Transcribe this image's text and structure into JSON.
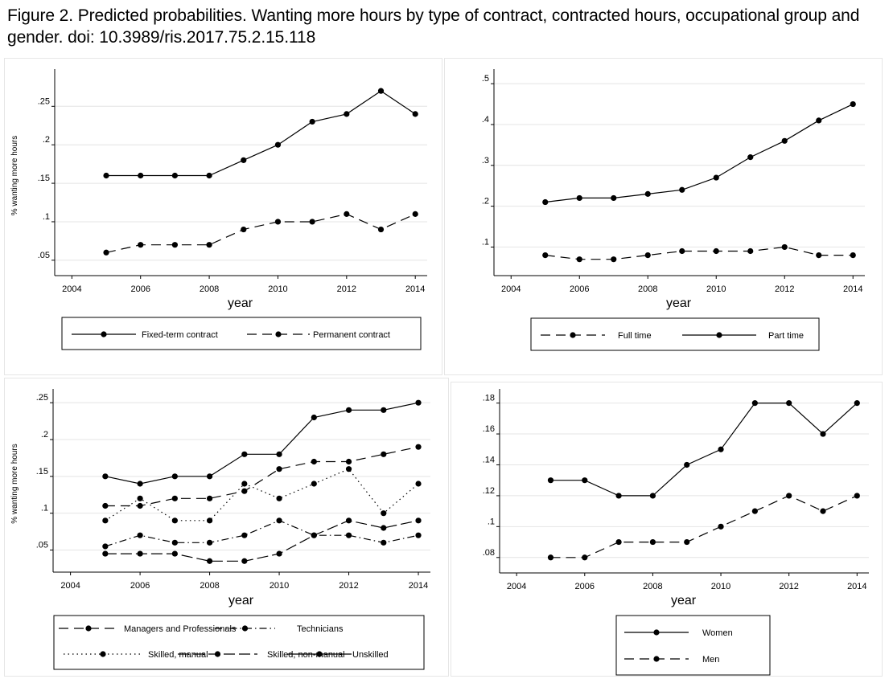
{
  "caption": "Figure 2. Predicted probabilities. Wanting more hours by type of contract, contracted hours, occupational group and gender. doi: 10.3989/ris.2017.75.2.15.118",
  "chart_data": [
    {
      "type": "line",
      "xlabel": "year",
      "ylabel": "% wanting more hours",
      "xlim": [
        2003.5,
        2014.3
      ],
      "ylim": [
        0.03,
        0.29
      ],
      "xticks": [
        2004,
        2006,
        2008,
        2010,
        2012,
        2014
      ],
      "yticks": [
        0.05,
        0.1,
        0.15,
        0.2,
        0.25
      ],
      "ytick_labels": [
        ".05",
        ".1",
        ".15",
        ".2",
        ".25"
      ],
      "grid": true,
      "legend_placement": "bottom",
      "series": [
        {
          "name": "Fixed-term contract",
          "style": "solid",
          "x": [
            2005,
            2006,
            2007,
            2008,
            2009,
            2010,
            2011,
            2012,
            2013,
            2014
          ],
          "y": [
            0.16,
            0.16,
            0.16,
            0.16,
            0.18,
            0.2,
            0.23,
            0.24,
            0.27,
            0.24
          ]
        },
        {
          "name": "Permanent contract",
          "style": "dash",
          "x": [
            2005,
            2006,
            2007,
            2008,
            2009,
            2010,
            2011,
            2012,
            2013,
            2014
          ],
          "y": [
            0.06,
            0.07,
            0.07,
            0.07,
            0.09,
            0.1,
            0.1,
            0.11,
            0.09,
            0.11
          ]
        }
      ]
    },
    {
      "type": "line",
      "xlabel": "year",
      "ylabel": "",
      "xlim": [
        2003.5,
        2014.3
      ],
      "ylim": [
        0.03,
        0.52
      ],
      "xticks": [
        2004,
        2006,
        2008,
        2010,
        2012,
        2014
      ],
      "yticks": [
        0.1,
        0.2,
        0.3,
        0.4,
        0.5
      ],
      "ytick_labels": [
        ".1",
        ".2",
        ".3",
        ".4",
        ".5"
      ],
      "grid": true,
      "legend_placement": "bottom",
      "series": [
        {
          "name": "Full time",
          "style": "dash",
          "x": [
            2005,
            2006,
            2007,
            2008,
            2009,
            2010,
            2011,
            2012,
            2013,
            2014
          ],
          "y": [
            0.08,
            0.07,
            0.07,
            0.08,
            0.09,
            0.09,
            0.09,
            0.1,
            0.08,
            0.08
          ]
        },
        {
          "name": "Part time",
          "style": "solid",
          "x": [
            2005,
            2006,
            2007,
            2008,
            2009,
            2010,
            2011,
            2012,
            2013,
            2014
          ],
          "y": [
            0.21,
            0.22,
            0.22,
            0.23,
            0.24,
            0.27,
            0.32,
            0.36,
            0.41,
            0.45
          ]
        }
      ]
    },
    {
      "type": "line",
      "xlabel": "year",
      "ylabel": "% wanting more hours",
      "xlim": [
        2003.5,
        2014.3
      ],
      "ylim": [
        0.02,
        0.26
      ],
      "xticks": [
        2004,
        2006,
        2008,
        2010,
        2012,
        2014
      ],
      "yticks": [
        0.05,
        0.1,
        0.15,
        0.2,
        0.25
      ],
      "ytick_labels": [
        ".05",
        ".1",
        ".15",
        ".2",
        ".25"
      ],
      "grid": true,
      "legend_placement": "bottom",
      "series": [
        {
          "name": "Managers and Professionals",
          "style": "dash",
          "x": [
            2005,
            2006,
            2007,
            2008,
            2009,
            2010,
            2011,
            2012,
            2013,
            2014
          ],
          "y": [
            0.11,
            0.11,
            0.12,
            0.12,
            0.13,
            0.16,
            0.17,
            0.17,
            0.18,
            0.19
          ]
        },
        {
          "name": "Technicians",
          "style": "dashdot",
          "x": [
            2005,
            2006,
            2007,
            2008,
            2009,
            2010,
            2011,
            2012,
            2013,
            2014
          ],
          "y": [
            0.055,
            0.07,
            0.06,
            0.06,
            0.07,
            0.09,
            0.07,
            0.07,
            0.06,
            0.07
          ]
        },
        {
          "name": "Skilled, manual",
          "style": "dot",
          "x": [
            2005,
            2006,
            2007,
            2008,
            2009,
            2010,
            2011,
            2012,
            2013,
            2014
          ],
          "y": [
            0.09,
            0.12,
            0.09,
            0.09,
            0.14,
            0.12,
            0.14,
            0.16,
            0.1,
            0.14
          ]
        },
        {
          "name": "Skilled, non-manual",
          "style": "longdash",
          "x": [
            2005,
            2006,
            2007,
            2008,
            2009,
            2010,
            2011,
            2012,
            2013,
            2014
          ],
          "y": [
            0.045,
            0.045,
            0.045,
            0.035,
            0.035,
            0.045,
            0.07,
            0.09,
            0.08,
            0.09
          ]
        },
        {
          "name": "Unskilled",
          "style": "solid",
          "x": [
            2005,
            2006,
            2007,
            2008,
            2009,
            2010,
            2011,
            2012,
            2013,
            2014
          ],
          "y": [
            0.15,
            0.14,
            0.15,
            0.15,
            0.18,
            0.18,
            0.23,
            0.24,
            0.24,
            0.25
          ]
        }
      ]
    },
    {
      "type": "line",
      "xlabel": "year",
      "ylabel": "",
      "xlim": [
        2003.5,
        2014.3
      ],
      "ylim": [
        0.07,
        0.185
      ],
      "xticks": [
        2004,
        2006,
        2008,
        2010,
        2012,
        2014
      ],
      "yticks": [
        0.08,
        0.1,
        0.12,
        0.14,
        0.16,
        0.18
      ],
      "ytick_labels": [
        ".08",
        ".1",
        ".12",
        ".14",
        ".16",
        ".18"
      ],
      "grid": true,
      "legend_placement": "bottom",
      "series": [
        {
          "name": "Women",
          "style": "solid",
          "x": [
            2005,
            2006,
            2007,
            2008,
            2009,
            2010,
            2011,
            2012,
            2013,
            2014
          ],
          "y": [
            0.13,
            0.13,
            0.12,
            0.12,
            0.14,
            0.15,
            0.18,
            0.18,
            0.16,
            0.18
          ]
        },
        {
          "name": "Men",
          "style": "dash",
          "x": [
            2005,
            2006,
            2007,
            2008,
            2009,
            2010,
            2011,
            2012,
            2013,
            2014
          ],
          "y": [
            0.08,
            0.08,
            0.09,
            0.09,
            0.09,
            0.1,
            0.11,
            0.12,
            0.11,
            0.12
          ]
        }
      ]
    }
  ]
}
